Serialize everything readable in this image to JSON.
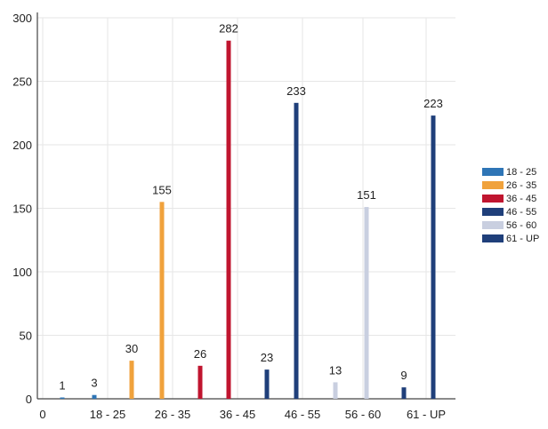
{
  "chart_data": {
    "type": "bar",
    "title": "",
    "xlabel": "",
    "ylabel": "",
    "ylim": [
      0,
      300
    ],
    "yticks": [
      0,
      50,
      100,
      150,
      200,
      250,
      300
    ],
    "xticks": [
      "0",
      "18 - 25",
      "26 - 35",
      "36 - 45",
      "46 - 55",
      "56 - 60",
      "61 - UP"
    ],
    "legend_position": "right",
    "grid": true,
    "series": [
      {
        "name": "18 - 25",
        "color": "#2e75b6",
        "values": [
          1,
          3
        ]
      },
      {
        "name": "26 - 35",
        "color": "#f0a23c",
        "values": [
          30,
          155
        ]
      },
      {
        "name": "36 - 45",
        "color": "#c0152f",
        "values": [
          26,
          282
        ]
      },
      {
        "name": "46 - 55",
        "color": "#1f3f7a",
        "values": [
          23,
          233
        ]
      },
      {
        "name": "56 - 60",
        "color": "#c9cfe0",
        "values": [
          13,
          151
        ]
      },
      {
        "name": "61 - UP",
        "color": "#1f3f7a",
        "values": [
          9,
          223
        ]
      }
    ]
  }
}
